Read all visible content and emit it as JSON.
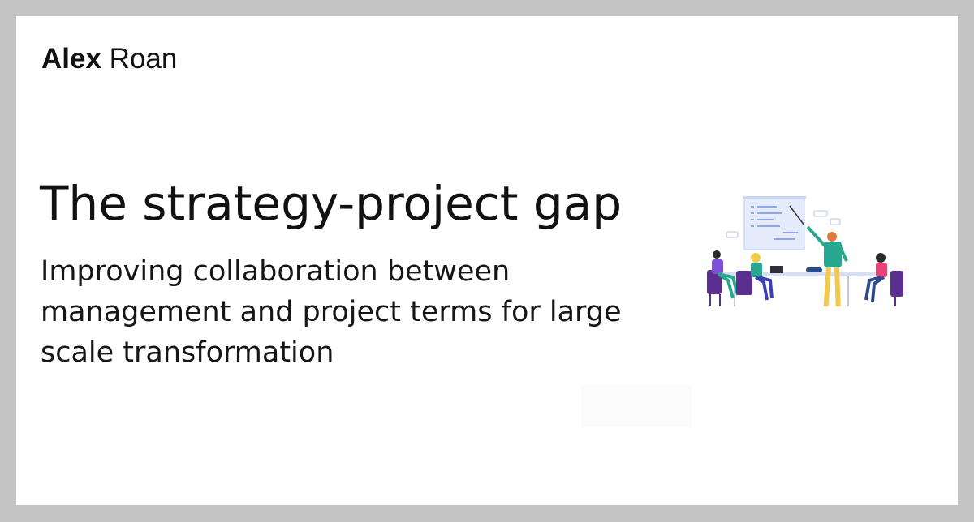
{
  "author": {
    "first_name": "Alex",
    "last_name": "Roan"
  },
  "title": "The strategy-project gap",
  "subtitle": "Improving collaboration between management and project terms for large scale transformation",
  "illustration": {
    "icon": "team-meeting-illustration",
    "colors": {
      "board": "#dfe7fb",
      "board_lines": "#8fa8e8",
      "chairs": "#5a2f8f",
      "teal": "#2aa88f",
      "table": "#d8dff0",
      "accent_pink": "#e8417a",
      "yellow": "#f2c94c",
      "purple": "#7b4fd6"
    }
  }
}
